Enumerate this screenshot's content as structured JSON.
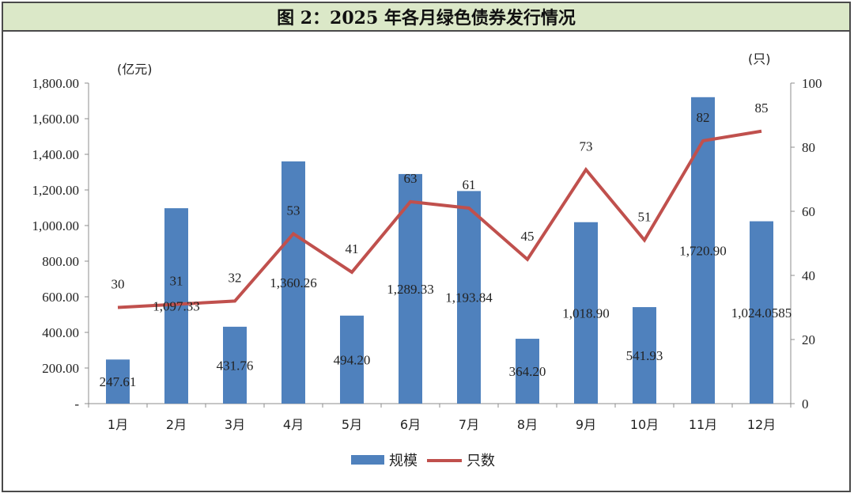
{
  "title": "图 2：2025 年各月绿色债券发行情况",
  "chart_data": {
    "type": "bar+line",
    "categories": [
      "1月",
      "2月",
      "3月",
      "4月",
      "5月",
      "6月",
      "7月",
      "8月",
      "9月",
      "10月",
      "11月",
      "12月"
    ],
    "series": [
      {
        "name": "规模",
        "type": "bar",
        "axis": "left",
        "color": "#4f81bd",
        "values": [
          247.61,
          1097.33,
          431.76,
          1360.26,
          494.2,
          1289.33,
          1193.84,
          364.2,
          1018.9,
          541.93,
          1720.9,
          1024.0585
        ],
        "labels": [
          "247.61",
          "1,097.33",
          "431.76",
          "1,360.26",
          "494.20",
          "1,289.33",
          "1,193.84",
          "364.20",
          "1,018.90",
          "541.93",
          "1,720.90",
          "1,024.0585"
        ]
      },
      {
        "name": "只数",
        "type": "line",
        "axis": "right",
        "color": "#c0504d",
        "values": [
          30,
          31,
          32,
          53,
          41,
          63,
          61,
          45,
          73,
          51,
          82,
          85
        ]
      }
    ],
    "left_axis": {
      "unit": "(亿元)",
      "ylim": [
        0,
        1800
      ],
      "ticks": [
        0,
        200,
        400,
        600,
        800,
        1000,
        1200,
        1400,
        1600,
        1800
      ],
      "tick_labels": [
        "-",
        "200.00",
        "400.00",
        "600.00",
        "800.00",
        "1,000.00",
        "1,200.00",
        "1,400.00",
        "1,600.00",
        "1,800.00"
      ]
    },
    "right_axis": {
      "unit": "(只)",
      "ylim": [
        0,
        100
      ],
      "ticks": [
        0,
        20,
        40,
        60,
        80,
        100
      ],
      "tick_labels": [
        "0",
        "20",
        "40",
        "60",
        "80",
        "100"
      ]
    },
    "grid": false,
    "legend": "bottom-center"
  }
}
